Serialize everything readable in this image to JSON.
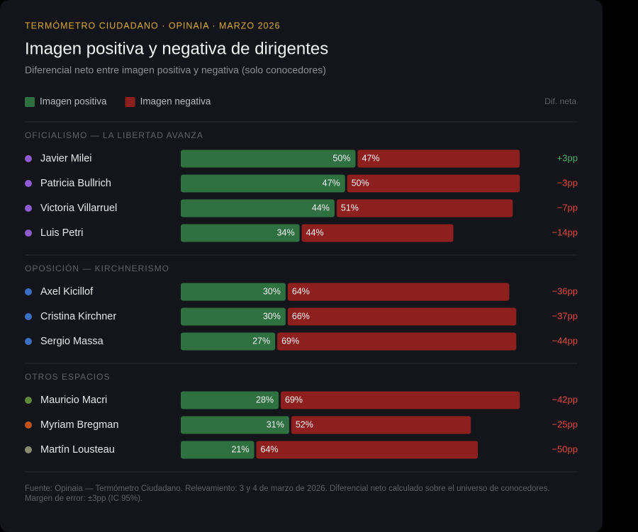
{
  "chart_data": {
    "type": "stacked-barh",
    "kicker": "TERMÓMETRO CIUDADANO · OPINAIA · MARZO 2026",
    "title": "Imagen positiva y negativa de dirigentes",
    "subtitle": "Diferencial neto entre imagen positiva y negativa (solo conocedores)",
    "legend": [
      {
        "name": "Imagen positiva",
        "color": "#2e7040"
      },
      {
        "name": "Imagen negativa",
        "color": "#8e1f1f"
      }
    ],
    "net_title": "Dif. neta",
    "net_colors": {
      "positive": "#4caf6a",
      "negative": "#e04a42"
    },
    "xlim": [
      0,
      100
    ],
    "groups": [
      {
        "name": "OFICIALISMO — LA LIBERTAD AVANZA",
        "categories": [
          "Javier Milei",
          "Patricia Bullrich",
          "Victoria Villarruel",
          "Luis Petri"
        ],
        "dot_colors": [
          "#8e5bd0",
          "#8e5bd0",
          "#8e5bd0",
          "#8e5bd0"
        ],
        "series": [
          {
            "name": "Imagen positiva",
            "color": "#2e7040",
            "values": [
              50,
              47,
              44,
              34
            ],
            "value_labels": [
              "50%",
              "47%",
              "44%",
              "34%"
            ]
          },
          {
            "name": "Imagen negativa",
            "color": "#8e1f1f",
            "values": [
              47,
              50,
              51,
              44
            ],
            "value_labels": [
              "47%",
              "50%",
              "51%",
              "44%"
            ]
          }
        ],
        "net": {
          "values": [
            3,
            -3,
            -7,
            -14
          ],
          "value_labels": [
            "+3pp",
            "−3pp",
            "−7pp",
            "−14pp"
          ]
        }
      },
      {
        "name": "OPOSICIÓN — KIRCHNERISMO",
        "categories": [
          "Axel Kicillof",
          "Cristina Kirchner",
          "Sergio Massa"
        ],
        "dot_colors": [
          "#3b6fc4",
          "#3b6fc4",
          "#3b6fc4"
        ],
        "series": [
          {
            "name": "Imagen positiva",
            "color": "#2e7040",
            "values": [
              30,
              30,
              27
            ],
            "value_labels": [
              "30%",
              "30%",
              "27%"
            ]
          },
          {
            "name": "Imagen negativa",
            "color": "#8e1f1f",
            "values": [
              64,
              66,
              69
            ],
            "value_labels": [
              "64%",
              "66%",
              "69%"
            ]
          }
        ],
        "net": {
          "values": [
            -36,
            -37,
            -44
          ],
          "value_labels": [
            "−36pp",
            "−37pp",
            "−44pp"
          ]
        }
      },
      {
        "name": "OTROS ESPACIOS",
        "categories": [
          "Mauricio Macri",
          "Myriam Bregman",
          "Martín Lousteau"
        ],
        "dot_colors": [
          "#5e8a3c",
          "#c0541f",
          "#8c8a70"
        ],
        "series": [
          {
            "name": "Imagen positiva",
            "color": "#2e7040",
            "values": [
              28,
              31,
              21
            ],
            "value_labels": [
              "28%",
              "31%",
              "21%"
            ]
          },
          {
            "name": "Imagen negativa",
            "color": "#8e1f1f",
            "values": [
              69,
              52,
              64
            ],
            "value_labels": [
              "69%",
              "52%",
              "64%"
            ]
          }
        ],
        "net": {
          "values": [
            -42,
            -25,
            -50
          ],
          "value_labels": [
            "−42pp",
            "−25pp",
            "−50pp"
          ]
        }
      }
    ],
    "source": "Fuente: Opinaia — Termómetro Ciudadano. Relevamiento: 3 y 4 de marzo de 2026. Diferencial neto calculado sobre el universo de conocedores. Margen de error: ±3pp (IC 95%)."
  }
}
